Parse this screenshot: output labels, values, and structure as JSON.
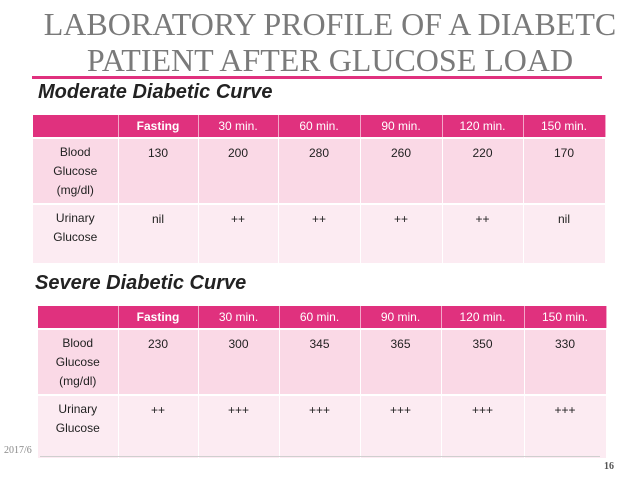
{
  "slide": {
    "title_line1": "LABORATORY PROFILE OF A DIABETC",
    "title_line2": "PATIENT AFTER GLUCOSE LOAD",
    "date": "2017/6",
    "page_number": "16",
    "accent_color": "#e0317e"
  },
  "moderate": {
    "heading": "Moderate Diabetic Curve",
    "headers": [
      "Fasting",
      "30 min.",
      "60 min.",
      "90 min.",
      "120 min.",
      "150 min."
    ],
    "rows": [
      {
        "label": [
          "Blood",
          "Glucose",
          "(mg/dl)"
        ],
        "values": [
          "130",
          "200",
          "280",
          "260",
          "220",
          "170"
        ]
      },
      {
        "label": [
          "Urinary",
          "Glucose"
        ],
        "values": [
          "nil",
          "++",
          "++",
          "++",
          "++",
          "nil"
        ]
      }
    ]
  },
  "severe": {
    "heading": "Severe Diabetic Curve",
    "headers": [
      "Fasting",
      "30 min.",
      "60 min.",
      "90 min.",
      "120 min.",
      "150 min."
    ],
    "rows": [
      {
        "label": [
          "Blood",
          "Glucose",
          "(mg/dl)"
        ],
        "values": [
          "230",
          "300",
          "345",
          "365",
          "350",
          "330"
        ]
      },
      {
        "label": [
          "Urinary",
          "Glucose"
        ],
        "values": [
          "++",
          "+++",
          "+++",
          "+++",
          "+++",
          "+++"
        ]
      }
    ]
  }
}
